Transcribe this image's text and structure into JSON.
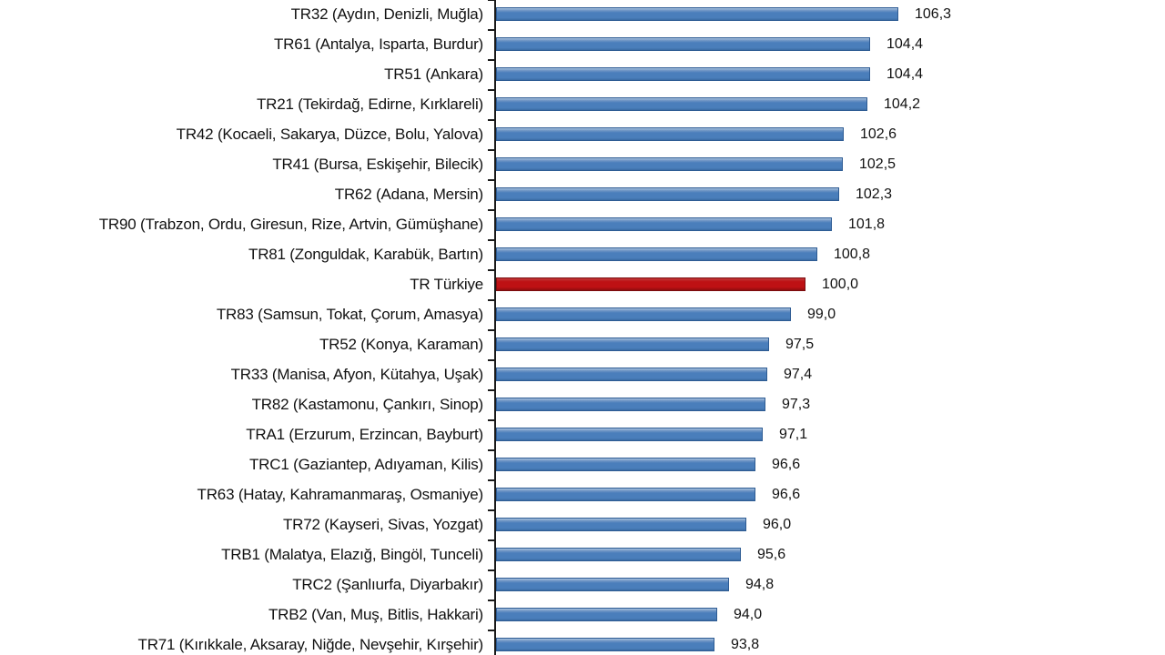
{
  "chart_data": {
    "type": "bar",
    "orientation": "horizontal",
    "title": "",
    "xlabel": "",
    "ylabel": "",
    "grid": false,
    "legend": false,
    "x_axis_labels_visible": false,
    "xlim_estimated": [
      79,
      108
    ],
    "categories": [
      "TR32 (Aydın, Denizli, Muğla)",
      "TR61 (Antalya, Isparta, Burdur)",
      "TR51 (Ankara)",
      "TR21 (Tekirdağ, Edirne, Kırklareli)",
      "TR42 (Kocaeli, Sakarya, Düzce, Bolu, Yalova)",
      "TR41 (Bursa, Eskişehir, Bilecik)",
      "TR62 (Adana, Mersin)",
      "TR90 (Trabzon, Ordu, Giresun, Rize, Artvin, Gümüşhane)",
      "TR81 (Zonguldak, Karabük, Bartın)",
      "TR Türkiye",
      "TR83 (Samsun, Tokat, Çorum, Amasya)",
      "TR52 (Konya, Karaman)",
      "TR33 (Manisa, Afyon, Kütahya, Uşak)",
      "TR82 (Kastamonu, Çankırı, Sinop)",
      "TRA1 (Erzurum, Erzincan, Bayburt)",
      "TRC1 (Gaziantep, Adıyaman, Kilis)",
      "TR63 (Hatay, Kahramanmaraş, Osmaniye)",
      "TR72 (Kayseri, Sivas, Yozgat)",
      "TRB1 (Malatya, Elazığ, Bingöl, Tunceli)",
      "TRC2 (Şanlıurfa, Diyarbakır)",
      "TRB2 (Van, Muş, Bitlis, Hakkari)",
      "TR71 (Kırıkkale, Aksaray, Niğde, Nevşehir, Kırşehir)"
    ],
    "values": [
      106.3,
      104.4,
      104.4,
      104.2,
      102.6,
      102.5,
      102.3,
      101.8,
      100.8,
      100.0,
      99.0,
      97.5,
      97.4,
      97.3,
      97.1,
      96.6,
      96.6,
      96.0,
      95.6,
      94.8,
      94.0,
      93.8
    ],
    "value_labels": [
      "106,3",
      "104,4",
      "104,4",
      "104,2",
      "102,6",
      "102,5",
      "102,3",
      "101,8",
      "100,8",
      "100,0",
      "99,0",
      "97,5",
      "97,4",
      "97,3",
      "97,1",
      "96,6",
      "96,6",
      "96,0",
      "95,6",
      "94,8",
      "94,0",
      "93,8"
    ],
    "highlight_index": 9,
    "baseline_label": "TR Türkiye",
    "baseline_value_label": "100,0",
    "colors": {
      "bar_fill": "#4A7EBB",
      "bar_top_highlight": "#A8C2DE",
      "bar_bottom_shade": "#3A6BA3",
      "bar_border": "#2D5B93",
      "highlight_bar_fill": "#BE1114",
      "highlight_bar_border": "#7A0C0E",
      "axis": "#1A1A1A",
      "text": "#111111",
      "background": "#FFFFFF"
    }
  }
}
